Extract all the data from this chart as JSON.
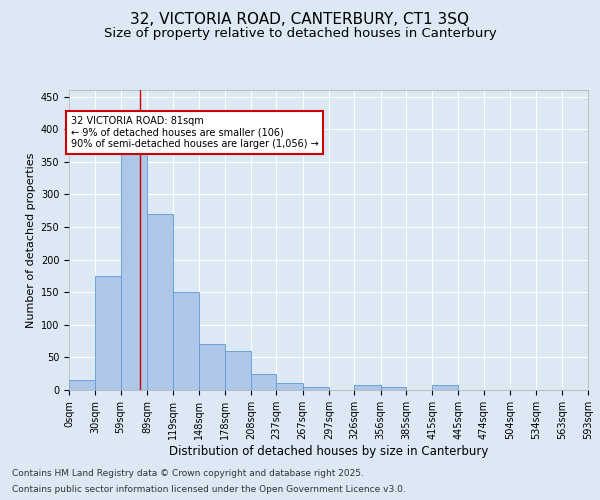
{
  "title_line1": "32, VICTORIA ROAD, CANTERBURY, CT1 3SQ",
  "title_line2": "Size of property relative to detached houses in Canterbury",
  "xlabel": "Distribution of detached houses by size in Canterbury",
  "ylabel": "Number of detached properties",
  "bar_values": [
    15,
    175,
    370,
    270,
    150,
    70,
    60,
    25,
    10,
    5,
    0,
    7,
    5,
    0,
    7,
    0,
    0,
    0,
    0,
    0
  ],
  "bin_edges": [
    0,
    30,
    59,
    89,
    119,
    148,
    178,
    208,
    237,
    267,
    297,
    326,
    356,
    385,
    415,
    445,
    474,
    504,
    534,
    563,
    593
  ],
  "bin_labels": [
    "0sqm",
    "30sqm",
    "59sqm",
    "89sqm",
    "119sqm",
    "148sqm",
    "178sqm",
    "208sqm",
    "237sqm",
    "267sqm",
    "297sqm",
    "326sqm",
    "356sqm",
    "385sqm",
    "415sqm",
    "445sqm",
    "474sqm",
    "504sqm",
    "534sqm",
    "563sqm",
    "593sqm"
  ],
  "bar_color": "#aec6e8",
  "bar_edge_color": "#5b9bd5",
  "vline_x": 81,
  "vline_color": "#cc0000",
  "annotation_text": "32 VICTORIA ROAD: 81sqm\n← 9% of detached houses are smaller (106)\n90% of semi-detached houses are larger (1,056) →",
  "annotation_box_color": "#ffffff",
  "annotation_box_edge": "#cc0000",
  "ylim": [
    0,
    460
  ],
  "yticks": [
    0,
    50,
    100,
    150,
    200,
    250,
    300,
    350,
    400,
    450
  ],
  "background_color": "#dce8f4",
  "plot_bg_color": "#dce8f4",
  "footer_line1": "Contains HM Land Registry data © Crown copyright and database right 2025.",
  "footer_line2": "Contains public sector information licensed under the Open Government Licence v3.0.",
  "title_fontsize": 11,
  "subtitle_fontsize": 9.5,
  "label_fontsize": 8,
  "tick_fontsize": 7,
  "footer_fontsize": 6.5
}
